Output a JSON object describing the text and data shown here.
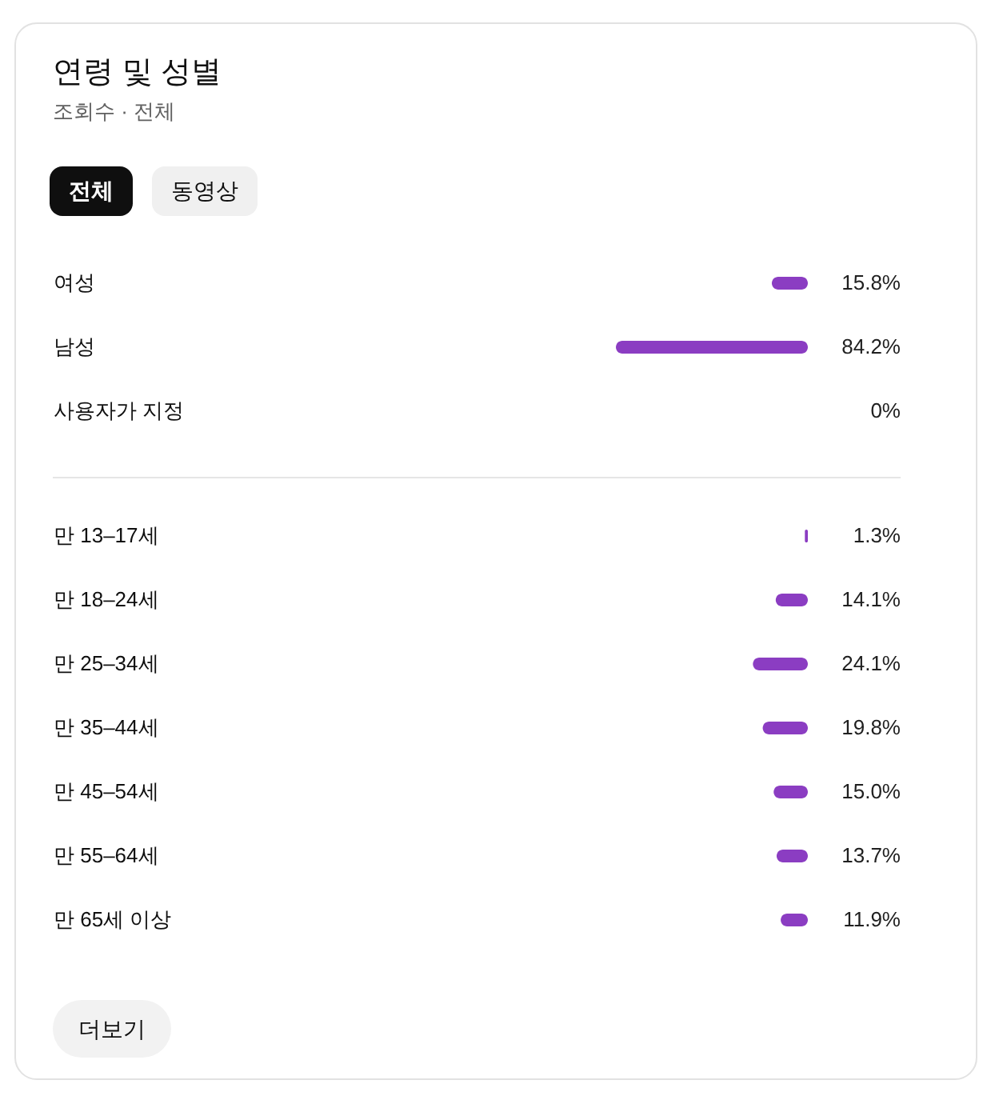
{
  "chart_data": [
    {
      "type": "bar",
      "orientation": "horizontal",
      "title": "연령 및 성별",
      "subtitle": "조회수 · 전체",
      "annotations": [
        "전체",
        "동영상"
      ],
      "categories": [
        "여성",
        "남성",
        "사용자가 지정"
      ],
      "values": [
        15.8,
        84.2,
        0
      ],
      "value_labels": [
        "15.8%",
        "84.2%",
        "0%"
      ],
      "color": "#8b3dc2"
    },
    {
      "type": "bar",
      "orientation": "horizontal",
      "annotations": [
        "더보기"
      ],
      "categories": [
        "만 13–17세",
        "만 18–24세",
        "만 25–34세",
        "만 35–44세",
        "만 45–54세",
        "만 55–64세",
        "만 65세 이상"
      ],
      "values": [
        1.3,
        14.1,
        24.1,
        19.8,
        15.0,
        13.7,
        11.9
      ],
      "value_labels": [
        "1.3%",
        "14.1%",
        "24.1%",
        "19.8%",
        "15.0%",
        "13.7%",
        "11.9%"
      ],
      "color": "#8b3dc2"
    }
  ]
}
